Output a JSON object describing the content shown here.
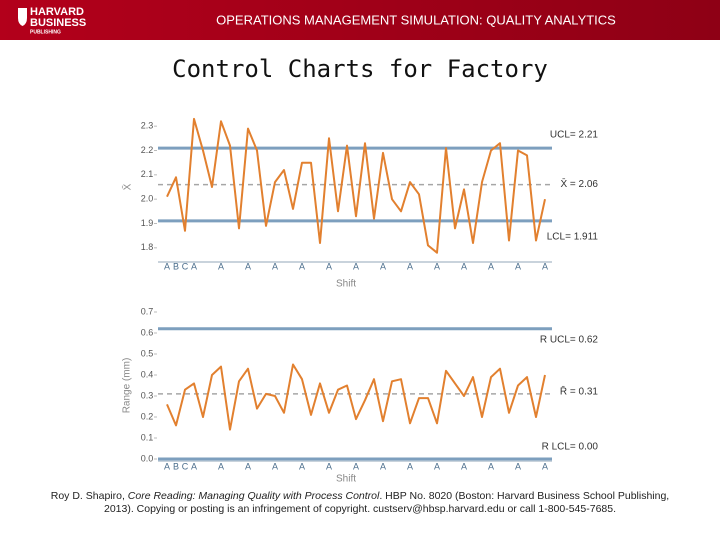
{
  "header": {
    "logo": [
      "HARVARD",
      "BUSINESS",
      "PUBLISHING"
    ],
    "title": "OPERATIONS MANAGEMENT SIMULATION: QUALITY ANALYTICS"
  },
  "title": "Control Charts for Factory",
  "chart_data": [
    {
      "type": "line",
      "ylabel": "X̄",
      "xlabel": "Shift",
      "color": "#e2802f",
      "categories": [
        "A",
        "B",
        "C",
        "A",
        null,
        null,
        "A",
        null,
        null,
        "A",
        null,
        null,
        "A",
        null,
        null,
        "A",
        null,
        null,
        "A",
        null,
        null,
        "A",
        null,
        null,
        "A",
        null,
        null,
        "A",
        null,
        null,
        "A",
        null,
        null,
        "A",
        null,
        null,
        "A",
        null,
        null,
        "A",
        null,
        null,
        "A"
      ],
      "values": [
        2.01,
        2.09,
        1.87,
        2.33,
        2.2,
        2.05,
        2.32,
        2.22,
        1.88,
        2.29,
        2.2,
        1.89,
        2.07,
        2.12,
        1.96,
        2.15,
        2.15,
        1.82,
        2.25,
        1.95,
        2.22,
        1.93,
        2.23,
        1.92,
        2.19,
        2.0,
        1.95,
        2.07,
        2.02,
        1.81,
        1.78,
        2.21,
        1.88,
        2.04,
        1.82,
        2.07,
        2.2,
        2.23,
        1.83,
        2.2,
        2.18,
        1.83,
        2.0
      ],
      "ylim": [
        1.75,
        2.35
      ],
      "yticks": [
        1.8,
        1.9,
        {
          "value": 2,
          "label": "2.0"
        },
        2.1,
        2.2,
        2.3
      ],
      "lines": [
        {
          "label": "UCL= 2.21",
          "value": 2.21,
          "color": "#7d9fbe",
          "style": "solid"
        },
        {
          "label": "X̄ = 2.06",
          "value": 2.06,
          "color": "#a6a6a6",
          "style": "dashed"
        },
        {
          "label": "LCL= 1.911",
          "value": 1.911,
          "color": "#7d9fbe",
          "style": "solid"
        }
      ]
    },
    {
      "type": "line",
      "ylabel": "Range (mm)",
      "xlabel": "Shift",
      "color": "#e2802f",
      "categories": [
        "A",
        "B",
        "C",
        "A",
        null,
        null,
        "A",
        null,
        null,
        "A",
        null,
        null,
        "A",
        null,
        null,
        "A",
        null,
        null,
        "A",
        null,
        null,
        "A",
        null,
        null,
        "A",
        null,
        null,
        "A",
        null,
        null,
        "A",
        null,
        null,
        "A",
        null,
        null,
        "A",
        null,
        null,
        "A",
        null,
        null,
        "A"
      ],
      "values": [
        0.26,
        0.16,
        0.33,
        0.36,
        0.2,
        0.4,
        0.44,
        0.14,
        0.37,
        0.43,
        0.24,
        0.31,
        0.3,
        0.22,
        0.45,
        0.38,
        0.21,
        0.36,
        0.22,
        0.33,
        0.35,
        0.19,
        0.28,
        0.38,
        0.18,
        0.37,
        0.38,
        0.17,
        0.29,
        0.29,
        0.17,
        0.42,
        0.36,
        0.3,
        0.39,
        0.2,
        0.39,
        0.43,
        0.22,
        0.35,
        0.39,
        0.2,
        0.4
      ],
      "ylim": [
        0,
        0.7
      ],
      "yticks": [
        {
          "value": 0,
          "label": "0.0"
        },
        0.1,
        0.2,
        0.3,
        0.4,
        0.5,
        0.6,
        0.7
      ],
      "lines": [
        {
          "label": "R UCL= 0.62",
          "value": 0.62,
          "color": "#7d9fbe",
          "style": "solid"
        },
        {
          "label": "R̄ = 0.31",
          "value": 0.31,
          "color": "#a6a6a6",
          "style": "dashed"
        },
        {
          "label": "R LCL= 0.00",
          "value": 0,
          "color": "#7d9fbe",
          "style": "solid"
        }
      ]
    }
  ],
  "footer": [
    "Roy D. Shapiro, ",
    "Core Reading: Managing Quality with Process Control",
    ". HBP No. 8020 (Boston: Harvard Business School Publishing,",
    "2013). Copying or posting is an infringement of copyright. custserv@hbsp.harvard.edu or call 1-800-545-7685."
  ]
}
